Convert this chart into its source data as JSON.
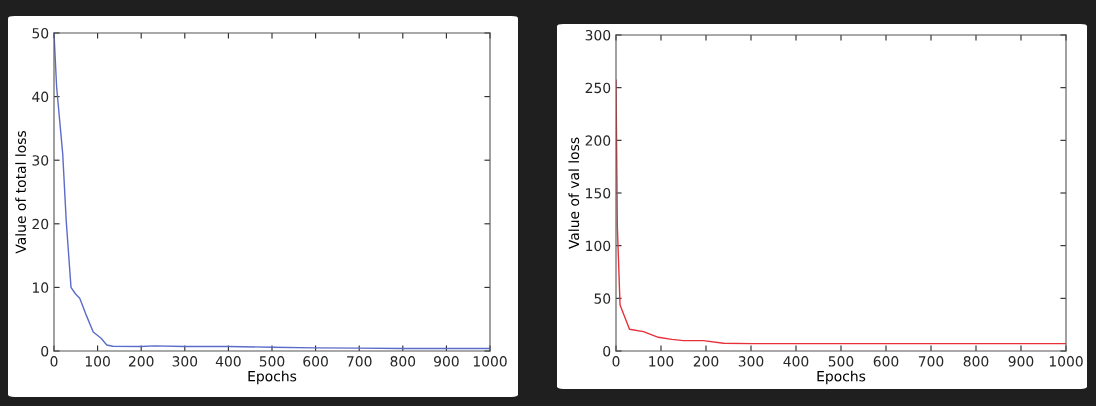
{
  "chart_data": [
    {
      "type": "line",
      "xlabel": "Epochs",
      "ylabel": "Value of total loss",
      "xlim": [
        0,
        1000
      ],
      "ylim": [
        0,
        50
      ],
      "xticks": [
        0,
        100,
        200,
        300,
        400,
        500,
        600,
        700,
        800,
        900,
        1000
      ],
      "yticks": [
        0,
        10,
        20,
        30,
        40,
        50
      ],
      "grid": false,
      "legend": false,
      "series": [
        {
          "color": "#5b6bc9",
          "x": [
            0,
            6,
            20,
            28,
            39,
            49,
            59,
            73,
            90,
            108,
            121,
            135,
            200,
            230,
            300,
            400,
            500,
            600,
            700,
            800,
            900,
            1000
          ],
          "values": [
            50,
            41.5,
            31,
            20.5,
            10,
            9,
            8.3,
            5.8,
            3.0,
            2.0,
            0.95,
            0.75,
            0.7,
            0.8,
            0.7,
            0.7,
            0.6,
            0.5,
            0.45,
            0.4,
            0.4,
            0.4
          ]
        }
      ]
    },
    {
      "type": "line",
      "xlabel": "Epochs",
      "ylabel": "Value of val loss",
      "xlim": [
        0,
        1000
      ],
      "ylim": [
        0,
        300
      ],
      "xticks": [
        0,
        100,
        200,
        300,
        400,
        500,
        600,
        700,
        800,
        900,
        1000
      ],
      "yticks": [
        0,
        50,
        100,
        150,
        200,
        250,
        300
      ],
      "grid": false,
      "legend": false,
      "series": [
        {
          "color": "#e8303a",
          "x": [
            0,
            3,
            9,
            30,
            61,
            94,
            124,
            150,
            194,
            239,
            300,
            500,
            700,
            1000
          ],
          "values": [
            257,
            118,
            43.7,
            20.6,
            18.4,
            13,
            11,
            9.8,
            9.8,
            7.3,
            7,
            7,
            7,
            7
          ]
        }
      ]
    }
  ]
}
